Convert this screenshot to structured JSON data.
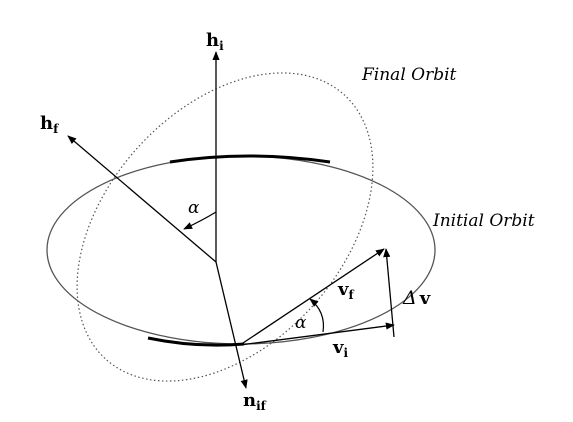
{
  "labels": {
    "final_orbit": "Final Orbit",
    "initial_orbit": "Initial Orbit",
    "alpha_upper": "α",
    "alpha_lower": "α",
    "delta_v_symbol": "Δ",
    "delta_v_vector": "v",
    "h_i_main": "h",
    "h_i_sub": "i",
    "h_f_main": "h",
    "h_f_sub": "f",
    "v_f_main": "v",
    "v_f_sub": "f",
    "v_i_main": "v",
    "v_i_sub": "i",
    "n_if_main": "n",
    "n_if_sub": "if"
  },
  "colors": {
    "ink": "#000000",
    "orbit_line": "#555555",
    "background": "#ffffff"
  },
  "styles": {
    "final_orbit_line": "dotted",
    "initial_orbit_line": "solid"
  }
}
